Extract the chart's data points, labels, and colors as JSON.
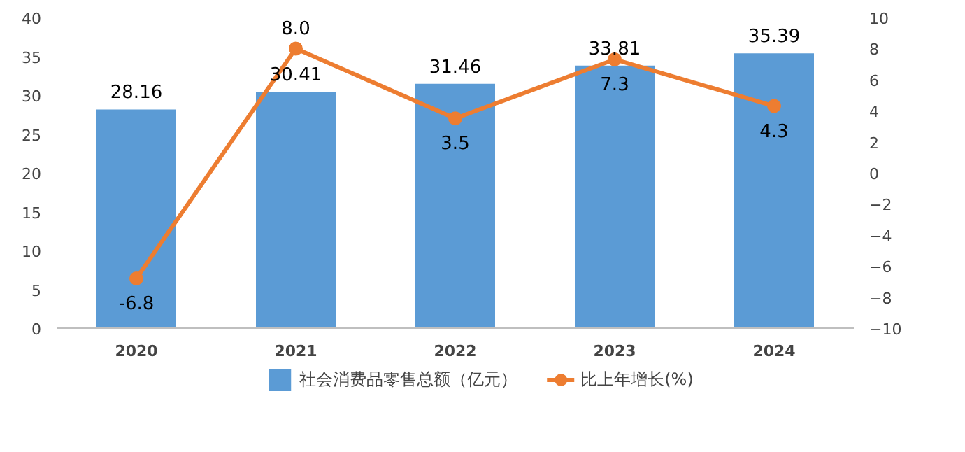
{
  "chart_data": {
    "type": "bar",
    "categories": [
      "2020",
      "2021",
      "2022",
      "2023",
      "2024"
    ],
    "series": [
      {
        "name": "社会消费品零售总额（亿元）",
        "color": "#5b9bd5",
        "values": [
          28.16,
          30.41,
          31.46,
          33.81,
          35.39
        ],
        "value_labels": [
          "28.16",
          "30.41",
          "31.46",
          "33.81",
          "35.39"
        ]
      },
      {
        "name": "比上年增长(%)",
        "type": "line",
        "axis": "y2",
        "color": "#ed7d31",
        "marker": "circle",
        "values": [
          -6.8,
          8.0,
          3.5,
          7.3,
          4.3
        ],
        "value_labels": [
          "-6.8",
          "8.0",
          "3.5",
          "7.3",
          "4.3"
        ]
      }
    ],
    "ylim": [
      0,
      40
    ],
    "yticks": [
      0,
      5,
      10,
      15,
      20,
      25,
      30,
      35,
      40
    ],
    "y2lim": [
      -10,
      10
    ],
    "y2ticks": [
      -10,
      -8,
      -6,
      -4,
      -2,
      0,
      2,
      4,
      6,
      8,
      10
    ],
    "grid": false,
    "legend": "bottom"
  }
}
